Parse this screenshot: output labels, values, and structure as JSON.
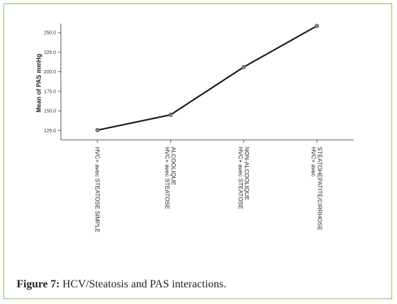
{
  "figure": {
    "label": "Figure 7:",
    "caption": "HCV/Steatosis and PAS interactions."
  },
  "colors": {
    "border": "#8bc34a",
    "line": "#1a1a1a",
    "axis": "#555555"
  },
  "chart_data": {
    "type": "line",
    "ylabel": "Mean of PAS mmHg",
    "xlabel": "",
    "ylim": [
      113,
      258
    ],
    "yticks": [
      125,
      150,
      175,
      200,
      225,
      250
    ],
    "ytick_labels": [
      "125.0",
      "150.0",
      "175.0",
      "200.0",
      "225.0",
      "250.0"
    ],
    "categories": [
      [
        "HVC+ avec STEATOSE SIMPLE"
      ],
      [
        "HVC+ avec STEATOSE",
        "ALCOOLIQUE"
      ],
      [
        "HVC+ avec STEATOSE",
        "NON-ALCOOLIQUE"
      ],
      [
        "HVC+ avec",
        "STEATOHEPATITE/CIRRHOSE"
      ]
    ],
    "values": [
      125.5,
      145,
      206,
      258.5
    ],
    "grid": false,
    "legend": "none"
  }
}
